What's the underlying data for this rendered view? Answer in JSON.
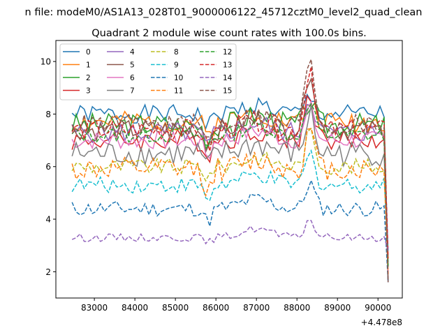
{
  "suptitle": "n file: modeM0/AS1A13_028T01_9000006122_45712cztM0_level2_quad_clean",
  "chart_data": {
    "type": "line",
    "title": "Quadrant 2 module wise count rates with 100.0s bins.",
    "xlabel": "",
    "ylabel": "",
    "x_offset_label": "+4.478e8",
    "xlim": [
      82050,
      90600
    ],
    "ylim": [
      1.0,
      10.8
    ],
    "x_ticks": [
      83000,
      84000,
      85000,
      86000,
      87000,
      88000,
      89000,
      90000
    ],
    "x_tick_labels": [
      "83000",
      "84000",
      "85000",
      "86000",
      "87000",
      "88000",
      "89000",
      "90000"
    ],
    "y_ticks": [
      2,
      4,
      6,
      8,
      10
    ],
    "y_tick_labels": [
      "2",
      "4",
      "6",
      "8",
      "10"
    ],
    "x_start": 82450,
    "x_step": 100,
    "grid": false,
    "legend_position": "top-left",
    "legend_columns": 4,
    "series": [
      {
        "name": "0",
        "color": "#1f77b4",
        "style": "solid",
        "base": 8.0,
        "amp": 0.35,
        "dip": 0.5,
        "flare": 0.6,
        "seed": 1
      },
      {
        "name": "1",
        "color": "#ff7f0e",
        "style": "solid",
        "base": 7.7,
        "amp": 0.4,
        "dip": 0.6,
        "flare": 0.8,
        "seed": 2
      },
      {
        "name": "2",
        "color": "#2ca02c",
        "style": "solid",
        "base": 7.6,
        "amp": 0.45,
        "dip": 0.6,
        "flare": 0.9,
        "seed": 3
      },
      {
        "name": "3",
        "color": "#d62728",
        "style": "solid",
        "base": 7.0,
        "amp": 0.4,
        "dip": 0.6,
        "flare": 1.8,
        "seed": 4
      },
      {
        "name": "4",
        "color": "#9467bd",
        "style": "solid",
        "base": 7.3,
        "amp": 0.4,
        "dip": 0.6,
        "flare": 1.4,
        "seed": 5
      },
      {
        "name": "5",
        "color": "#8c564b",
        "style": "solid",
        "base": 7.4,
        "amp": 0.4,
        "dip": 0.6,
        "flare": 2.4,
        "seed": 6
      },
      {
        "name": "6",
        "color": "#e377c2",
        "style": "solid",
        "base": 7.0,
        "amp": 0.35,
        "dip": 0.6,
        "flare": 1.2,
        "seed": 7
      },
      {
        "name": "7",
        "color": "#7f7f7f",
        "style": "solid",
        "base": 6.5,
        "amp": 0.5,
        "dip": 0.6,
        "flare": 1.5,
        "seed": 8
      },
      {
        "name": "8",
        "color": "#bcbd22",
        "style": "dashed",
        "base": 6.0,
        "amp": 0.3,
        "dip": 0.4,
        "flare": 1.3,
        "seed": 9
      },
      {
        "name": "9",
        "color": "#17becf",
        "style": "dashed",
        "base": 5.3,
        "amp": 0.3,
        "dip": 0.6,
        "flare": 1.2,
        "seed": 10
      },
      {
        "name": "10",
        "color": "#1f77b4",
        "style": "dashed",
        "base": 4.4,
        "amp": 0.3,
        "dip": 0.5,
        "flare": 1.0,
        "seed": 11
      },
      {
        "name": "11",
        "color": "#ff7f0e",
        "style": "dashed",
        "base": 5.9,
        "amp": 0.45,
        "dip": 0.9,
        "flare": 1.5,
        "seed": 12
      },
      {
        "name": "12",
        "color": "#2ca02c",
        "style": "dashed",
        "base": 7.2,
        "amp": 0.3,
        "dip": 0.5,
        "flare": 1.2,
        "seed": 13
      },
      {
        "name": "13",
        "color": "#d62728",
        "style": "dashed",
        "base": 7.4,
        "amp": 0.4,
        "dip": 0.7,
        "flare": 2.5,
        "seed": 14
      },
      {
        "name": "14",
        "color": "#9467bd",
        "style": "dashed",
        "base": 3.3,
        "amp": 0.15,
        "dip": 0.2,
        "flare": 0.7,
        "seed": 15
      },
      {
        "name": "15",
        "color": "#8c564b",
        "style": "dashed",
        "base": 7.6,
        "amp": 0.4,
        "dip": 0.7,
        "flare": 2.7,
        "seed": 16
      }
    ]
  }
}
